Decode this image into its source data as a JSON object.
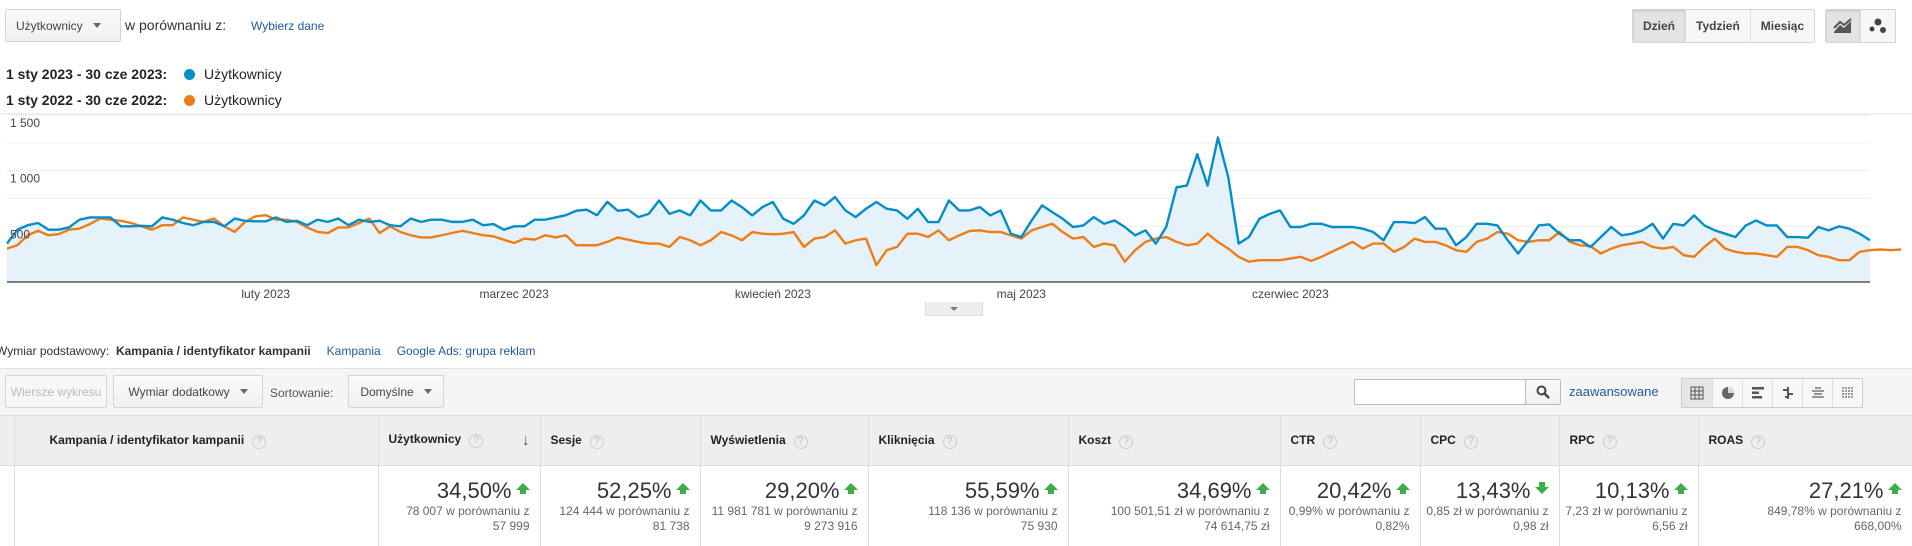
{
  "top": {
    "metric_select": "Użytkownicy",
    "compare_label": "w porównaniu z:",
    "compare_link": "Wybierz dane",
    "period_buttons": [
      "Dzień",
      "Tydzień",
      "Miesiąc"
    ],
    "active_period": "Dzień",
    "chart_type_icons": [
      "line-chart-icon",
      "motion-chart-icon"
    ]
  },
  "legend": [
    {
      "date": "1 sty 2023 - 30 cze 2023:",
      "metric": "Użytkownicy",
      "color": "#058dc7"
    },
    {
      "date": "1 sty 2022 - 30 cze 2022:",
      "metric": "Użytkownicy",
      "color": "#ed7e17"
    }
  ],
  "chart_data": {
    "type": "line",
    "ylim": [
      0,
      1500
    ],
    "yticks": [
      {
        "v": 500,
        "label": "500"
      },
      {
        "v": 1000,
        "label": "1 000"
      },
      {
        "v": 1500,
        "label": "1 500"
      }
    ],
    "xticks": [
      {
        "day": 25,
        "label": "luty 2023"
      },
      {
        "day": 49,
        "label": "marzec 2023"
      },
      {
        "day": 74,
        "label": "kwiecień 2023"
      },
      {
        "day": 98,
        "label": "maj 2023"
      },
      {
        "day": 124,
        "label": "czerwiec 2023"
      }
    ],
    "grid": true,
    "series": [
      {
        "name": "Użytkownicy (1 sty 2023 - 30 cze 2023)",
        "color": "#058dc7",
        "fill": "#e6f2f9",
        "values": [
          345,
          470,
          510,
          530,
          470,
          470,
          490,
          560,
          580,
          580,
          580,
          500,
          500,
          505,
          500,
          580,
          560,
          530,
          510,
          540,
          540,
          500,
          570,
          550,
          545,
          545,
          580,
          540,
          550,
          510,
          560,
          540,
          570,
          510,
          560,
          540,
          550,
          510,
          500,
          570,
          540,
          560,
          560,
          540,
          540,
          560,
          510,
          520,
          470,
          500,
          500,
          560,
          560,
          580,
          600,
          640,
          650,
          600,
          720,
          640,
          650,
          583,
          612,
          732,
          612,
          643,
          598,
          732,
          643,
          643,
          732,
          673,
          598,
          673,
          719,
          568,
          523,
          598,
          732,
          688,
          763,
          643,
          583,
          658,
          719,
          658,
          643,
          568,
          658,
          538,
          538,
          732,
          643,
          643,
          673,
          598,
          643,
          434,
          404,
          553,
          688,
          628,
          568,
          494,
          508,
          583,
          523,
          553,
          494,
          419,
          464,
          345,
          494,
          851,
          866,
          1149,
          866,
          1298,
          940,
          345,
          404,
          568,
          612,
          643,
          494,
          494,
          523,
          523,
          494,
          494,
          494,
          479,
          449,
          375,
          538,
          538,
          529,
          583,
          479,
          479,
          330,
          404,
          523,
          523,
          508,
          375,
          256,
          375,
          508,
          517,
          434,
          375,
          375,
          315,
          404,
          494,
          419,
          434,
          464,
          523,
          390,
          523,
          508,
          598,
          508,
          464,
          434,
          404,
          508,
          553,
          508,
          508,
          404,
          404,
          398,
          494,
          464,
          500,
          479,
          434,
          375
        ]
      },
      {
        "name": "Użytkownicy (1 sty 2022 - 30 cze 2022)",
        "color": "#ed7e17",
        "values": [
          300,
          330,
          420,
          460,
          420,
          430,
          470,
          480,
          520,
          570,
          560,
          550,
          530,
          500,
          470,
          510,
          510,
          580,
          560,
          540,
          570,
          500,
          450,
          540,
          590,
          600,
          560,
          560,
          540,
          490,
          450,
          440,
          490,
          490,
          530,
          570,
          440,
          500,
          450,
          420,
          400,
          400,
          420,
          440,
          460,
          440,
          420,
          410,
          380,
          350,
          390,
          380,
          420,
          400,
          420,
          330,
          330,
          330,
          360,
          400,
          380,
          360,
          345,
          345,
          315,
          404,
          375,
          330,
          375,
          449,
          419,
          375,
          449,
          434,
          428,
          434,
          449,
          315,
          390,
          404,
          464,
          345,
          375,
          390,
          152,
          286,
          315,
          434,
          434,
          404,
          464,
          375,
          419,
          458,
          464,
          449,
          449,
          419,
          390,
          464,
          494,
          523,
          449,
          390,
          404,
          315,
          345,
          330,
          182,
          286,
          360,
          390,
          404,
          360,
          330,
          345,
          434,
          360,
          300,
          226,
          182,
          196,
          196,
          196,
          211,
          226,
          190,
          226,
          271,
          315,
          360,
          300,
          345,
          345,
          271,
          315,
          390,
          360,
          360,
          330,
          286,
          271,
          360,
          390,
          449,
          434,
          375,
          360,
          375,
          375,
          449,
          360,
          330,
          321,
          256,
          300,
          330,
          345,
          360,
          315,
          300,
          315,
          241,
          226,
          315,
          390,
          300,
          271,
          256,
          256,
          241,
          226,
          315,
          315,
          286,
          241,
          226,
          196,
          196,
          271,
          286,
          292,
          286,
          292
        ]
      }
    ]
  },
  "dimension": {
    "label": "Wymiar podstawowy:",
    "active": "Kampania / identyfikator kampanii",
    "options": [
      "Kampania",
      "Google Ads: grupa reklam"
    ]
  },
  "toolbar": {
    "plot_rows": "Wiersze wykresu",
    "secondary_dim": "Wymiar dodatkowy",
    "sort_label": "Sortowanie:",
    "sort_value": "Domyślne",
    "search_value": "",
    "advanced": "zaawansowane",
    "view_icons": [
      "table-view-icon",
      "pie-view-icon",
      "bar-view-icon",
      "comparison-view-icon",
      "term-cloud-icon",
      "pivot-view-icon"
    ]
  },
  "table": {
    "columns": [
      "Kampania / identyfikator kampanii",
      "Użytkownicy",
      "Sesje",
      "Wyświetlenia",
      "Kliknięcia",
      "Koszt",
      "CTR",
      "CPC",
      "RPC",
      "ROAS"
    ],
    "totals": [
      {
        "pct": "34,50%",
        "dir": "up",
        "cmp1": "78 007 w porównaniu z",
        "cmp2": "57 999"
      },
      {
        "pct": "52,25%",
        "dir": "up",
        "cmp1": "124 444 w porównaniu z",
        "cmp2": "81 738"
      },
      {
        "pct": "29,20%",
        "dir": "up",
        "cmp1": "11 981 781 w porównaniu z",
        "cmp2": "9 273 916"
      },
      {
        "pct": "55,59%",
        "dir": "up",
        "cmp1": "118 136 w porównaniu z",
        "cmp2": "75 930"
      },
      {
        "pct": "34,69%",
        "dir": "up",
        "cmp1": "100 501,51 zł w porównaniu z",
        "cmp2": "74 614,75 zł"
      },
      {
        "pct": "20,42%",
        "dir": "up",
        "cmp1": "0,99% w porównaniu z",
        "cmp2": "0,82%"
      },
      {
        "pct": "13,43%",
        "dir": "down",
        "cmp1": "0,85 zł w porównaniu z",
        "cmp2": "0,98 zł"
      },
      {
        "pct": "10,13%",
        "dir": "up",
        "cmp1": "7,23 zł w porównaniu z",
        "cmp2": "6,56 zł"
      },
      {
        "pct": "27,21%",
        "dir": "up",
        "cmp1": "849,78% w porównaniu z",
        "cmp2": "668,00%"
      }
    ]
  }
}
